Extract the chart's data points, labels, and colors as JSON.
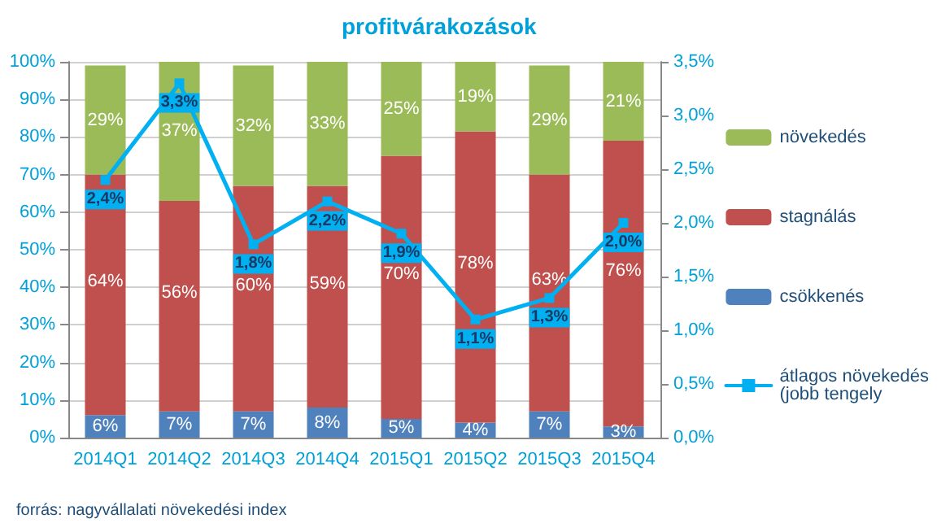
{
  "chart_data": {
    "type": "bar",
    "title": "profitvárakozások",
    "stacked": true,
    "categories": [
      "2014Q1",
      "2014Q2",
      "2014Q3",
      "2014Q4",
      "2015Q1",
      "2015Q2",
      "2015Q3",
      "2015Q4"
    ],
    "series": [
      {
        "name": "csökkenés",
        "color": "#4f81bd",
        "values": [
          6,
          7,
          7,
          8,
          5,
          4,
          7,
          3
        ],
        "value_labels": [
          "6%",
          "7%",
          "7%",
          "8%",
          "5%",
          "4%",
          "7%",
          "3%"
        ]
      },
      {
        "name": "stagnálás",
        "color": "#c0504d",
        "values": [
          64,
          56,
          60,
          59,
          70,
          77.5,
          63,
          76
        ],
        "value_labels": [
          "64%",
          "56%",
          "60%",
          "59%",
          "70%",
          "78%",
          "63%",
          "76%"
        ]
      },
      {
        "name": "növekedés",
        "color": "#9bbb59",
        "values": [
          29,
          37,
          32,
          33,
          25,
          18.5,
          29,
          21
        ],
        "value_labels": [
          "29%",
          "37%",
          "32%",
          "33%",
          "25%",
          "19%",
          "29%",
          "21%"
        ]
      },
      {
        "name": "átlagos növekedés (jobb tengely",
        "type": "line",
        "axis": "y2",
        "color": "#00b0f0",
        "values": [
          2.4,
          3.3,
          1.8,
          2.2,
          1.9,
          1.1,
          1.3,
          2.0
        ],
        "value_labels": [
          "2,4%",
          "3,3%",
          "1,8%",
          "2,2%",
          "1,9%",
          "1,1%",
          "1,3%",
          "2,0%"
        ]
      }
    ],
    "ylim": [
      0,
      100
    ],
    "yticks": [
      {
        "value": 0,
        "label": "0%"
      },
      {
        "value": 10,
        "label": "10%"
      },
      {
        "value": 20,
        "label": "20%"
      },
      {
        "value": 30,
        "label": "30%"
      },
      {
        "value": 40,
        "label": "40%"
      },
      {
        "value": 50,
        "label": "50%"
      },
      {
        "value": 60,
        "label": "60%"
      },
      {
        "value": 70,
        "label": "70%"
      },
      {
        "value": 80,
        "label": "80%"
      },
      {
        "value": 90,
        "label": "90%"
      },
      {
        "value": 100,
        "label": "100%"
      }
    ],
    "y2lim": [
      0,
      3.5
    ],
    "y2ticks": [
      {
        "value": 0,
        "label": "0,0%"
      },
      {
        "value": 0.5,
        "label": "0,5%"
      },
      {
        "value": 1,
        "label": "1,0%"
      },
      {
        "value": 1.5,
        "label": "1,5%"
      },
      {
        "value": 2,
        "label": "2,0%"
      },
      {
        "value": 2.5,
        "label": "2,5%"
      },
      {
        "value": 3,
        "label": "3,0%"
      },
      {
        "value": 3.5,
        "label": "3,5%"
      }
    ],
    "grid": "y",
    "legend": "right",
    "marker": "square",
    "line_style": "solid",
    "annotations": [
      "forrás: nagyvállalati növekedési index"
    ]
  }
}
